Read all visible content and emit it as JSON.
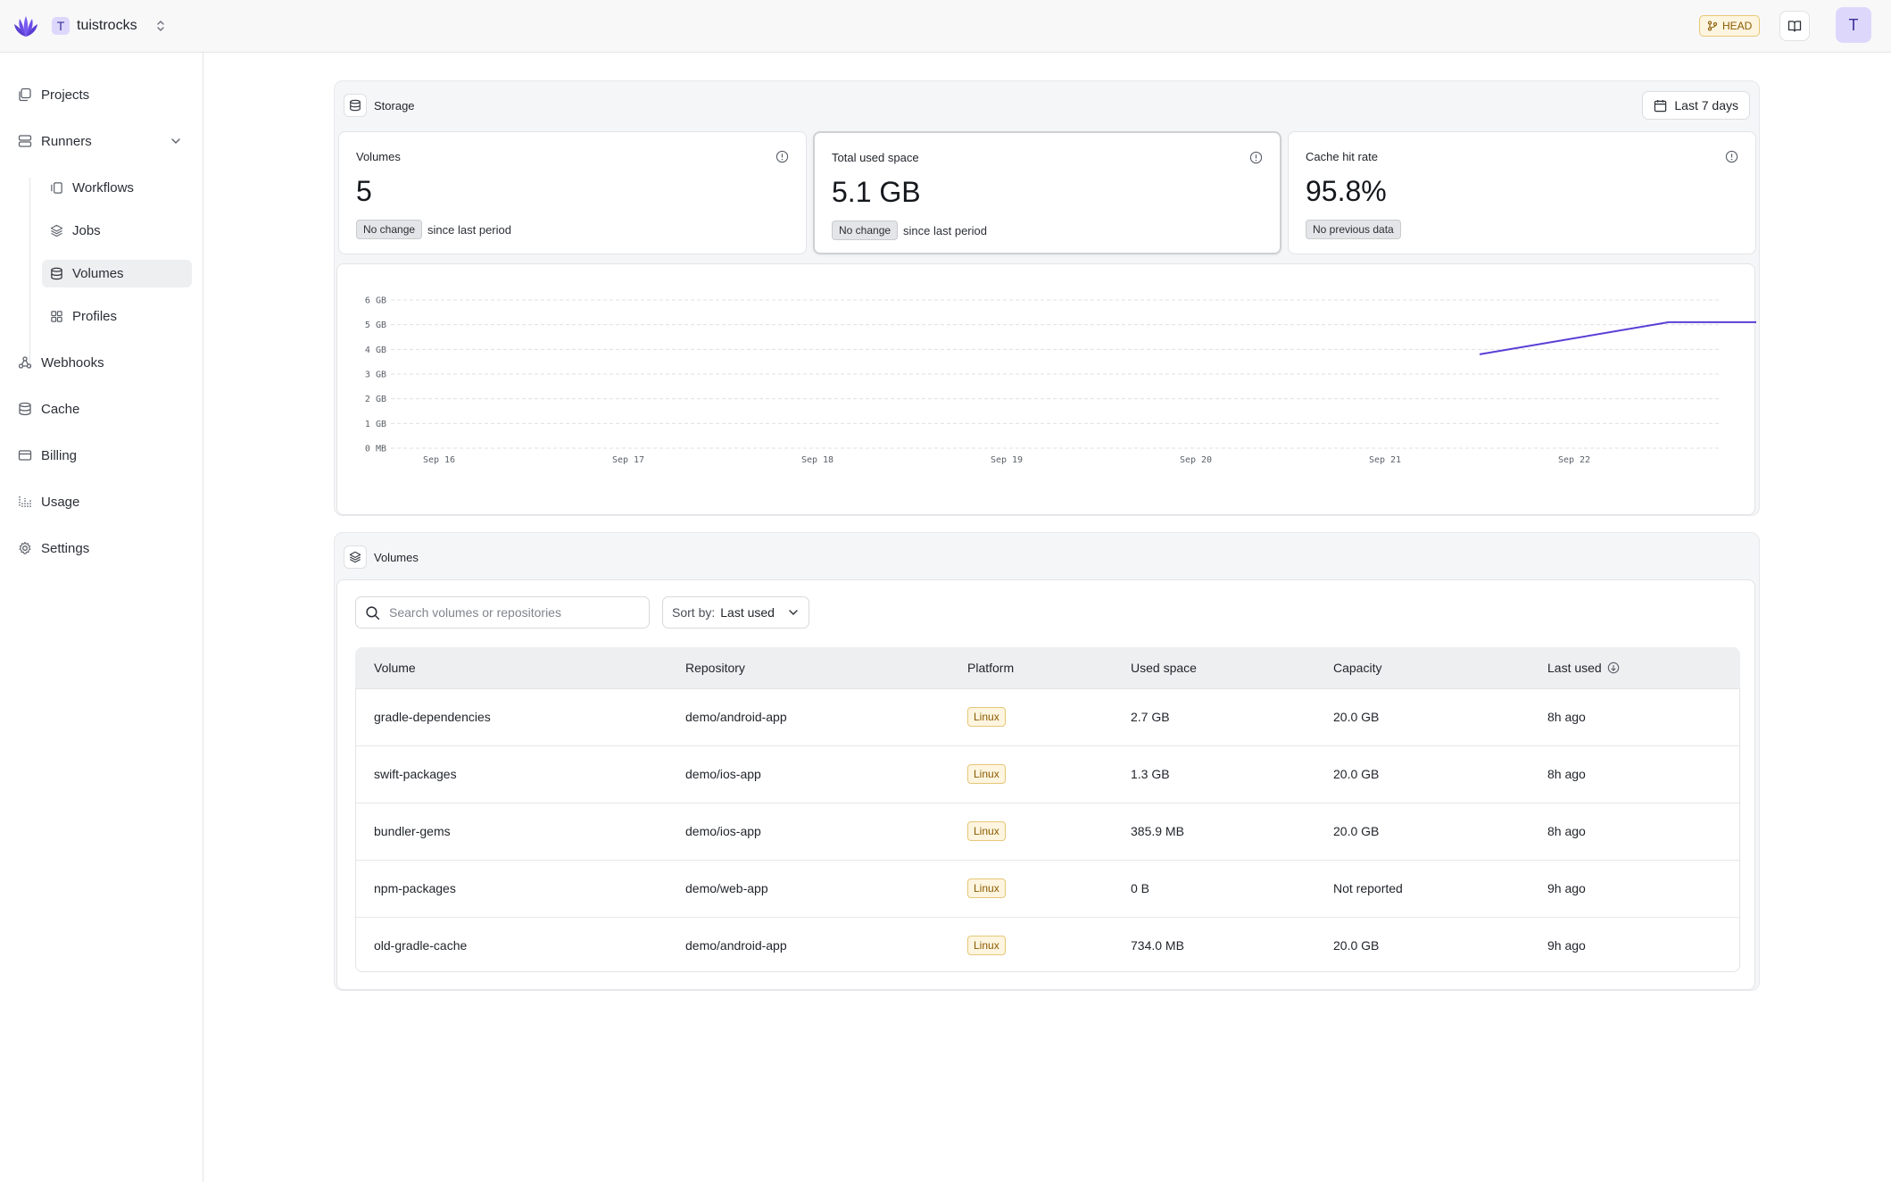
{
  "org": {
    "initial": "T",
    "name": "tuistrocks"
  },
  "header": {
    "branch_badge": "HEAD",
    "user_initial": "T"
  },
  "sidebar": {
    "projects": "Projects",
    "runners": "Runners",
    "runners_sub": [
      "Workflows",
      "Jobs",
      "Volumes",
      "Profiles"
    ],
    "webhooks": "Webhooks",
    "cache": "Cache",
    "billing": "Billing",
    "usage": "Usage",
    "settings": "Settings"
  },
  "storage": {
    "title": "Storage",
    "range_label": "Last 7 days",
    "metrics": [
      {
        "label": "Volumes",
        "value": "5",
        "tag": "No change",
        "suffix": "since last period"
      },
      {
        "label": "Total used space",
        "value": "5.1 GB",
        "tag": "No change",
        "suffix": "since last period"
      },
      {
        "label": "Cache hit rate",
        "value": "95.8%",
        "tag": "No previous data",
        "suffix": ""
      }
    ]
  },
  "chart_data": {
    "type": "line",
    "y_ticks": [
      "0 MB",
      "1 GB",
      "2 GB",
      "3 GB",
      "4 GB",
      "5 GB",
      "6 GB"
    ],
    "ylim": [
      0,
      6
    ],
    "x_ticks": [
      "Sep 16",
      "Sep 17",
      "Sep 18",
      "Sep 19",
      "Sep 20",
      "Sep 21",
      "Sep 22"
    ],
    "grid": true,
    "line_color": "#5b3fd6",
    "series": [
      {
        "x": [
          "Sep 21 12:00",
          "Sep 22 12:00",
          "Sep 22 18:00",
          "Sep 23 00:00"
        ],
        "values": [
          3.8,
          5.1,
          5.1,
          5.1
        ]
      }
    ]
  },
  "volumes": {
    "title": "Volumes",
    "search_placeholder": "Search volumes or repositories",
    "sort_label": "Sort by:",
    "sort_value": "Last used",
    "columns": [
      "Volume",
      "Repository",
      "Platform",
      "Used space",
      "Capacity",
      "Last used"
    ],
    "rows": [
      {
        "volume": "gradle-dependencies",
        "repository": "demo/android-app",
        "platform": "Linux",
        "used": "2.7 GB",
        "capacity": "20.0 GB",
        "last_used": "8h ago"
      },
      {
        "volume": "swift-packages",
        "repository": "demo/ios-app",
        "platform": "Linux",
        "used": "1.3 GB",
        "capacity": "20.0 GB",
        "last_used": "8h ago"
      },
      {
        "volume": "bundler-gems",
        "repository": "demo/ios-app",
        "platform": "Linux",
        "used": "385.9 MB",
        "capacity": "20.0 GB",
        "last_used": "8h ago"
      },
      {
        "volume": "npm-packages",
        "repository": "demo/web-app",
        "platform": "Linux",
        "used": "0 B",
        "capacity": "Not reported",
        "last_used": "9h ago"
      },
      {
        "volume": "old-gradle-cache",
        "repository": "demo/android-app",
        "platform": "Linux",
        "used": "734.0 MB",
        "capacity": "20.0 GB",
        "last_used": "9h ago"
      }
    ]
  }
}
